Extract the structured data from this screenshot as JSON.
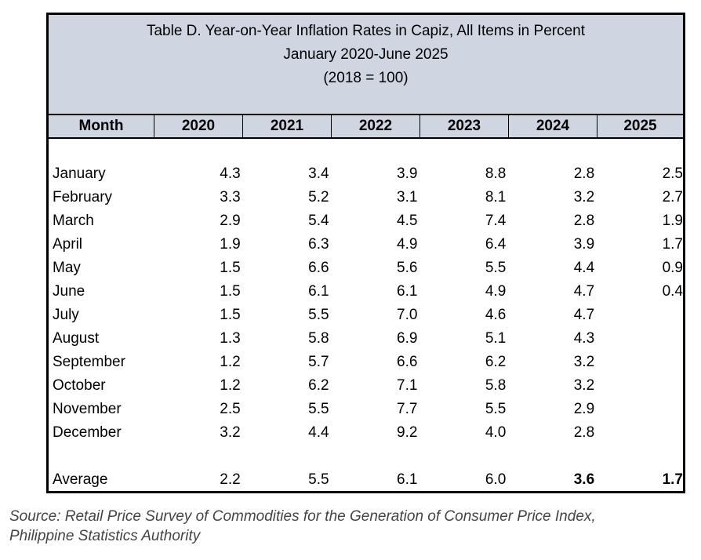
{
  "table": {
    "title": "Table D. Year-on-Year Inflation Rates in Capiz, All Items in Percent",
    "period": "January 2020-June 2025",
    "base": "(2018 = 100)",
    "headers": [
      "Month",
      "2020",
      "2021",
      "2022",
      "2023",
      "2024",
      "2025"
    ],
    "rows": [
      {
        "month": "January",
        "values": [
          "4.3",
          "3.4",
          "3.9",
          "8.8",
          "2.8",
          "2.5"
        ]
      },
      {
        "month": "February",
        "values": [
          "3.3",
          "5.2",
          "3.1",
          "8.1",
          "3.2",
          "2.7"
        ]
      },
      {
        "month": "March",
        "values": [
          "2.9",
          "5.4",
          "4.5",
          "7.4",
          "2.8",
          "1.9"
        ]
      },
      {
        "month": "April",
        "values": [
          "1.9",
          "6.3",
          "4.9",
          "6.4",
          "3.9",
          "1.7"
        ]
      },
      {
        "month": "May",
        "values": [
          "1.5",
          "6.6",
          "5.6",
          "5.5",
          "4.4",
          "0.9"
        ]
      },
      {
        "month": "June",
        "values": [
          "1.5",
          "6.1",
          "6.1",
          "4.9",
          "4.7",
          "0.4"
        ]
      },
      {
        "month": "July",
        "values": [
          "1.5",
          "5.5",
          "7.0",
          "4.6",
          "4.7",
          ""
        ]
      },
      {
        "month": "August",
        "values": [
          "1.3",
          "5.8",
          "6.9",
          "5.1",
          "4.3",
          ""
        ]
      },
      {
        "month": "September",
        "values": [
          "1.2",
          "5.7",
          "6.6",
          "6.2",
          "3.2",
          ""
        ]
      },
      {
        "month": "October",
        "values": [
          "1.2",
          "6.2",
          "7.1",
          "5.8",
          "3.2",
          ""
        ]
      },
      {
        "month": "November",
        "values": [
          "2.5",
          "5.5",
          "7.7",
          "5.5",
          "2.9",
          ""
        ]
      },
      {
        "month": "December",
        "values": [
          "3.2",
          "4.4",
          "9.2",
          "4.0",
          "2.8",
          ""
        ]
      }
    ],
    "average": {
      "label": "Average",
      "values": [
        "2.2",
        "5.5",
        "6.1",
        "6.0",
        "3.6",
        "1.7"
      ]
    }
  },
  "source_line1": "Source: Retail Price Survey of Commodities for the Generation of Consumer Price Index,",
  "source_line2": "Philippine Statistics Authority",
  "colors": {
    "header_bg": "#cfd6e2",
    "source_text": "#444444"
  }
}
